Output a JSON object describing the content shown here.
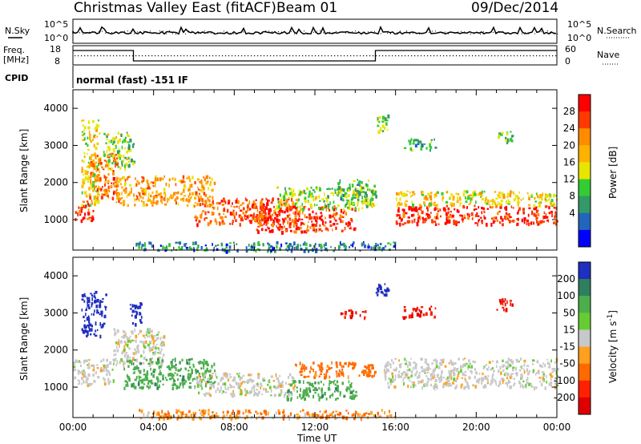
{
  "header": {
    "title": "Christmas Valley East (fitACF)",
    "beam": "Beam 01",
    "date": "09/Dec/2014"
  },
  "summary_panels": {
    "nsky_label": "N.Sky",
    "nsearch_label": "N.Search",
    "freq_label_line1": "Freq.",
    "freq_label_line2": "[MHz]",
    "nave_label": "Nave",
    "cpid_label": "CPID",
    "cpid_text": "normal (fast) -151 IF",
    "noise_left_ticks": [
      "10^5",
      "10^0"
    ],
    "noise_right_ticks": [
      "10^5",
      "10^0"
    ],
    "freq_left_ticks": [
      "18",
      "8"
    ],
    "freq_right_ticks": [
      "60",
      "0"
    ]
  },
  "chart_data": [
    {
      "type": "heatmap",
      "name": "power_panel",
      "ylabel": "Slant Range [km]",
      "xlabel": "Time UT",
      "x_ticks": [
        "00:00",
        "04:00",
        "08:00",
        "12:00",
        "16:00",
        "20:00",
        "00:00"
      ],
      "y_ticks": [
        "1000",
        "2000",
        "3000",
        "4000"
      ],
      "xlim_hours": [
        0,
        24
      ],
      "ylim_km": [
        180,
        4500
      ],
      "colorbar": {
        "label": "Power [dB]",
        "ticks": [
          "28",
          "24",
          "20",
          "16",
          "12",
          "8",
          "4"
        ],
        "colors": [
          "#ff0000",
          "#ff3a00",
          "#ff8c00",
          "#ffb300",
          "#e6e600",
          "#33cc33",
          "#339966",
          "#2266bb",
          "#0000ff"
        ]
      },
      "regions": [
        {
          "t0": 0.1,
          "t1": 1.0,
          "r0": 1000,
          "r1": 1600,
          "level": 0.95
        },
        {
          "t0": 0.4,
          "t1": 1.3,
          "r0": 1400,
          "r1": 3700,
          "level": 0.55
        },
        {
          "t0": 0.8,
          "t1": 2.2,
          "r0": 1600,
          "r1": 2800,
          "level": 0.8
        },
        {
          "t0": 1.5,
          "t1": 3.0,
          "r0": 2400,
          "r1": 3400,
          "level": 0.4
        },
        {
          "t0": 2.0,
          "t1": 7.0,
          "r0": 1400,
          "r1": 2200,
          "level": 0.7
        },
        {
          "t0": 6.0,
          "t1": 11.0,
          "r0": 900,
          "r1": 1600,
          "level": 0.85
        },
        {
          "t0": 9.0,
          "t1": 14.0,
          "r0": 700,
          "r1": 1400,
          "level": 0.9
        },
        {
          "t0": 10.0,
          "t1": 15.0,
          "r0": 1300,
          "r1": 1900,
          "level": 0.45
        },
        {
          "t0": 13.0,
          "t1": 15.0,
          "r0": 1500,
          "r1": 2100,
          "level": 0.35
        },
        {
          "t0": 16.0,
          "t1": 24.0,
          "r0": 900,
          "r1": 1400,
          "level": 0.95
        },
        {
          "t0": 16.0,
          "t1": 24.0,
          "r0": 1400,
          "r1": 1800,
          "level": 0.55
        },
        {
          "t0": 15.0,
          "t1": 15.6,
          "r0": 3400,
          "r1": 3900,
          "level": 0.4
        },
        {
          "t0": 16.3,
          "t1": 18.0,
          "r0": 2900,
          "r1": 3200,
          "level": 0.3
        },
        {
          "t0": 21.0,
          "t1": 21.8,
          "r0": 3100,
          "r1": 3400,
          "level": 0.35
        },
        {
          "t0": 3.0,
          "t1": 16.0,
          "r0": 180,
          "r1": 420,
          "level": 0.2
        }
      ]
    },
    {
      "type": "heatmap",
      "name": "velocity_panel",
      "ylabel": "Slant Range [km]",
      "xlabel": "Time UT",
      "x_ticks": [
        "00:00",
        "04:00",
        "08:00",
        "12:00",
        "16:00",
        "20:00",
        "00:00"
      ],
      "y_ticks": [
        "1000",
        "2000",
        "3000",
        "4000"
      ],
      "xlim_hours": [
        0,
        24
      ],
      "ylim_km": [
        180,
        4500
      ],
      "colorbar": {
        "label": "Velocity [m s^-1]",
        "ticks": [
          "200",
          "100",
          "50",
          "15",
          "-15",
          "-50",
          "-100",
          "-200"
        ],
        "colors": [
          "#1f2fbf",
          "#2f7f5f",
          "#4caf4c",
          "#66cc33",
          "#c8c8c8",
          "#ffa020",
          "#ff6a00",
          "#ff2000",
          "#e00000"
        ]
      },
      "regions": [
        {
          "t0": 0.0,
          "t1": 2.0,
          "r0": 1100,
          "r1": 1800,
          "v": 0
        },
        {
          "t0": 0.4,
          "t1": 1.6,
          "r0": 2400,
          "r1": 3600,
          "v": 200
        },
        {
          "t0": 2.8,
          "t1": 3.4,
          "r0": 2700,
          "r1": 3300,
          "v": 200
        },
        {
          "t0": 2.0,
          "t1": 4.5,
          "r0": 1600,
          "r1": 2600,
          "v": 0
        },
        {
          "t0": 2.5,
          "t1": 7.0,
          "r0": 1000,
          "r1": 1800,
          "v": 60
        },
        {
          "t0": 6.0,
          "t1": 11.0,
          "r0": 800,
          "r1": 1400,
          "v": 0
        },
        {
          "t0": 10.5,
          "t1": 14.0,
          "r0": 700,
          "r1": 1200,
          "v": 60
        },
        {
          "t0": 11.0,
          "t1": 15.0,
          "r0": 1300,
          "r1": 1700,
          "v": -50
        },
        {
          "t0": 15.4,
          "t1": 24.0,
          "r0": 1000,
          "r1": 1800,
          "v": 0
        },
        {
          "t0": 15.0,
          "t1": 15.6,
          "r0": 3500,
          "r1": 3900,
          "v": 200
        },
        {
          "t0": 16.3,
          "t1": 18.0,
          "r0": 2900,
          "r1": 3200,
          "v": -150
        },
        {
          "t0": 13.0,
          "t1": 14.5,
          "r0": 2900,
          "r1": 3100,
          "v": -150
        },
        {
          "t0": 21.0,
          "t1": 21.8,
          "r0": 3100,
          "r1": 3400,
          "v": -150
        },
        {
          "t0": 3.0,
          "t1": 16.0,
          "r0": 180,
          "r1": 420,
          "v": -30
        }
      ]
    }
  ]
}
